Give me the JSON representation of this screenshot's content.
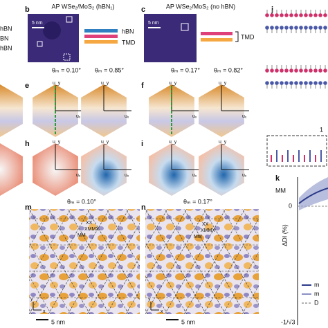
{
  "panel_labels": {
    "b": "b",
    "c": "c",
    "j": "j",
    "e": "e",
    "f": "f",
    "h": "h",
    "i": "i",
    "m": "m",
    "n": "n",
    "k": "k"
  },
  "left_labels": [
    "hBN",
    "BN",
    "hBN"
  ],
  "titles": {
    "b": "AP WSe₂/MoS₂ (hBN₁)",
    "c": "AP WSe₂/MoS₂ (no hBN)"
  },
  "scale_bar": "5 nm",
  "legend_b": [
    "hBN",
    "TMD"
  ],
  "legend_c": [
    "TMD"
  ],
  "angles": [
    "θₘ = 0.10°",
    "θₘ = 0.85°",
    "θₘ = 0.17°",
    "θₘ = 0.82°"
  ],
  "axes": {
    "ux": "uₓ",
    "uy": "u_y",
    "x": "x",
    "y": "y"
  },
  "stacking": [
    "XX",
    "XMMX",
    "MM"
  ],
  "inset_j": "1",
  "plot_k": {
    "mm": "MM",
    "ylabel": "ΔDI (%)",
    "zero": "0",
    "xmin": "-1/√3",
    "legend": [
      "m",
      "m",
      "D"
    ]
  }
}
